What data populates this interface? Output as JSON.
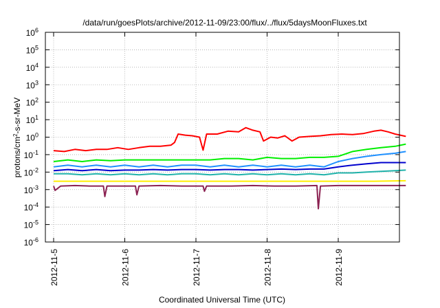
{
  "chart_data": {
    "type": "line",
    "title": "/data/run/goesPlots/archive/2012-11-09/23:00/flux/../flux/5daysMoonFluxes.txt",
    "xlabel": "Coordinated Universal Time (UTC)",
    "ylabel_parts": {
      "pre": "protons/cm",
      "sup": "2",
      "post": "-s-sr-MeV"
    },
    "yscale": "log",
    "ylim_exp": [
      -6,
      6
    ],
    "y_ticks": [
      {
        "exp": -6,
        "label_base": "10",
        "label_exp": "-6"
      },
      {
        "exp": -5,
        "label_base": "10",
        "label_exp": "-5"
      },
      {
        "exp": -4,
        "label_base": "10",
        "label_exp": "-4"
      },
      {
        "exp": -3,
        "label_base": "10",
        "label_exp": "-3"
      },
      {
        "exp": -2,
        "label_base": "10",
        "label_exp": "-2"
      },
      {
        "exp": -1,
        "label_base": "10",
        "label_exp": "-1"
      },
      {
        "exp": 0,
        "label_base": "10",
        "label_exp": "0"
      },
      {
        "exp": 1,
        "label_base": "10",
        "label_exp": "1"
      },
      {
        "exp": 2,
        "label_base": "10",
        "label_exp": "2"
      },
      {
        "exp": 3,
        "label_base": "10",
        "label_exp": "3"
      },
      {
        "exp": 4,
        "label_base": "10",
        "label_exp": "4"
      },
      {
        "exp": 5,
        "label_base": "10",
        "label_exp": "5"
      },
      {
        "exp": 6,
        "label_base": "10",
        "label_exp": "6"
      }
    ],
    "x_ticks": [
      "2012-11-5",
      "2012-11-6",
      "2012-11-7",
      "2012-11-8",
      "2012-11-9"
    ],
    "x_tick_days": [
      0,
      1,
      2,
      3,
      4
    ],
    "xlim_days": [
      0,
      4.95
    ],
    "grid": true,
    "series": [
      {
        "color": "#ff0000",
        "points": [
          [
            0,
            0.17
          ],
          [
            0.15,
            0.15
          ],
          [
            0.3,
            0.2
          ],
          [
            0.45,
            0.17
          ],
          [
            0.6,
            0.2
          ],
          [
            0.75,
            0.2
          ],
          [
            0.9,
            0.25
          ],
          [
            1.05,
            0.2
          ],
          [
            1.2,
            0.25
          ],
          [
            1.35,
            0.3
          ],
          [
            1.5,
            0.3
          ],
          [
            1.65,
            0.35
          ],
          [
            1.7,
            0.5
          ],
          [
            1.75,
            1.5
          ],
          [
            1.85,
            1.3
          ],
          [
            1.95,
            1.2
          ],
          [
            2.05,
            1.0
          ],
          [
            2.1,
            0.18
          ],
          [
            2.15,
            1.5
          ],
          [
            2.3,
            1.5
          ],
          [
            2.45,
            2.2
          ],
          [
            2.6,
            2.0
          ],
          [
            2.7,
            3.5
          ],
          [
            2.8,
            2.5
          ],
          [
            2.9,
            2.0
          ],
          [
            2.95,
            0.6
          ],
          [
            3.05,
            1.0
          ],
          [
            3.15,
            0.9
          ],
          [
            3.25,
            1.2
          ],
          [
            3.35,
            0.6
          ],
          [
            3.45,
            1.0
          ],
          [
            3.6,
            1.1
          ],
          [
            3.75,
            1.2
          ],
          [
            3.9,
            1.4
          ],
          [
            4.05,
            1.5
          ],
          [
            4.2,
            1.4
          ],
          [
            4.35,
            1.6
          ],
          [
            4.5,
            2.2
          ],
          [
            4.6,
            2.5
          ],
          [
            4.7,
            2.0
          ],
          [
            4.8,
            1.5
          ],
          [
            4.95,
            1.1
          ]
        ]
      },
      {
        "color": "#00ee00",
        "points": [
          [
            0,
            0.04
          ],
          [
            0.2,
            0.05
          ],
          [
            0.4,
            0.04
          ],
          [
            0.6,
            0.05
          ],
          [
            0.8,
            0.045
          ],
          [
            1.0,
            0.05
          ],
          [
            1.2,
            0.05
          ],
          [
            1.4,
            0.05
          ],
          [
            1.6,
            0.05
          ],
          [
            1.8,
            0.05
          ],
          [
            2.0,
            0.05
          ],
          [
            2.2,
            0.05
          ],
          [
            2.4,
            0.06
          ],
          [
            2.6,
            0.06
          ],
          [
            2.8,
            0.05
          ],
          [
            3.0,
            0.07
          ],
          [
            3.2,
            0.06
          ],
          [
            3.4,
            0.06
          ],
          [
            3.6,
            0.07
          ],
          [
            3.8,
            0.07
          ],
          [
            4.0,
            0.08
          ],
          [
            4.2,
            0.15
          ],
          [
            4.4,
            0.2
          ],
          [
            4.6,
            0.25
          ],
          [
            4.8,
            0.3
          ],
          [
            4.95,
            0.4
          ]
        ]
      },
      {
        "color": "#1e90ff",
        "points": [
          [
            0,
            0.02
          ],
          [
            0.2,
            0.025
          ],
          [
            0.4,
            0.02
          ],
          [
            0.6,
            0.025
          ],
          [
            0.8,
            0.02
          ],
          [
            1.0,
            0.025
          ],
          [
            1.2,
            0.02
          ],
          [
            1.4,
            0.025
          ],
          [
            1.6,
            0.02
          ],
          [
            1.8,
            0.025
          ],
          [
            2.0,
            0.025
          ],
          [
            2.2,
            0.02
          ],
          [
            2.4,
            0.025
          ],
          [
            2.6,
            0.02
          ],
          [
            2.8,
            0.025
          ],
          [
            3.0,
            0.02
          ],
          [
            3.2,
            0.025
          ],
          [
            3.4,
            0.02
          ],
          [
            3.6,
            0.025
          ],
          [
            3.8,
            0.02
          ],
          [
            4.0,
            0.04
          ],
          [
            4.2,
            0.06
          ],
          [
            4.4,
            0.08
          ],
          [
            4.6,
            0.1
          ],
          [
            4.8,
            0.12
          ],
          [
            4.95,
            0.15
          ]
        ]
      },
      {
        "color": "#0000cd",
        "points": [
          [
            0,
            0.012
          ],
          [
            0.2,
            0.014
          ],
          [
            0.4,
            0.012
          ],
          [
            0.6,
            0.014
          ],
          [
            0.8,
            0.012
          ],
          [
            1.0,
            0.013
          ],
          [
            1.2,
            0.013
          ],
          [
            1.4,
            0.014
          ],
          [
            1.6,
            0.013
          ],
          [
            1.8,
            0.014
          ],
          [
            2.0,
            0.014
          ],
          [
            2.2,
            0.013
          ],
          [
            2.4,
            0.014
          ],
          [
            2.6,
            0.014
          ],
          [
            2.8,
            0.013
          ],
          [
            3.0,
            0.014
          ],
          [
            3.2,
            0.015
          ],
          [
            3.4,
            0.014
          ],
          [
            3.6,
            0.015
          ],
          [
            3.8,
            0.015
          ],
          [
            4.0,
            0.02
          ],
          [
            4.2,
            0.025
          ],
          [
            4.4,
            0.03
          ],
          [
            4.6,
            0.035
          ],
          [
            4.8,
            0.035
          ],
          [
            4.95,
            0.035
          ]
        ]
      },
      {
        "color": "#20b2aa",
        "points": [
          [
            0,
            0.008
          ],
          [
            0.2,
            0.008
          ],
          [
            0.4,
            0.007
          ],
          [
            0.6,
            0.008
          ],
          [
            0.8,
            0.007
          ],
          [
            1.0,
            0.008
          ],
          [
            1.2,
            0.007
          ],
          [
            1.4,
            0.008
          ],
          [
            1.6,
            0.007
          ],
          [
            1.8,
            0.008
          ],
          [
            2.0,
            0.008
          ],
          [
            2.2,
            0.007
          ],
          [
            2.4,
            0.008
          ],
          [
            2.6,
            0.007
          ],
          [
            2.8,
            0.008
          ],
          [
            3.0,
            0.007
          ],
          [
            3.2,
            0.008
          ],
          [
            3.4,
            0.007
          ],
          [
            3.6,
            0.008
          ],
          [
            3.8,
            0.007
          ],
          [
            4.0,
            0.009
          ],
          [
            4.2,
            0.009
          ],
          [
            4.4,
            0.01
          ],
          [
            4.6,
            0.011
          ],
          [
            4.8,
            0.012
          ],
          [
            4.95,
            0.013
          ]
        ]
      },
      {
        "color": "#ffee00",
        "points": [
          [
            0,
            0.003
          ],
          [
            0.5,
            0.003
          ],
          [
            1.0,
            0.003
          ],
          [
            1.5,
            0.003
          ],
          [
            2.0,
            0.003
          ],
          [
            2.5,
            0.003
          ],
          [
            3.0,
            0.003
          ],
          [
            3.5,
            0.003
          ],
          [
            4.0,
            0.003
          ],
          [
            4.5,
            0.003
          ],
          [
            4.95,
            0.0032
          ]
        ]
      },
      {
        "color": "#8b2252",
        "points": [
          [
            0,
            0.0016
          ],
          [
            0.02,
            0.0009
          ],
          [
            0.1,
            0.0016
          ],
          [
            0.3,
            0.0017
          ],
          [
            0.5,
            0.0016
          ],
          [
            0.7,
            0.0016
          ],
          [
            0.72,
            0.0004
          ],
          [
            0.75,
            0.0016
          ],
          [
            1.0,
            0.0016
          ],
          [
            1.15,
            0.0016
          ],
          [
            1.17,
            0.0005
          ],
          [
            1.2,
            0.0016
          ],
          [
            1.5,
            0.0017
          ],
          [
            1.8,
            0.0016
          ],
          [
            2.1,
            0.0016
          ],
          [
            2.12,
            0.0008
          ],
          [
            2.15,
            0.0016
          ],
          [
            2.5,
            0.0016
          ],
          [
            2.8,
            0.0017
          ],
          [
            3.1,
            0.0016
          ],
          [
            3.4,
            0.0016
          ],
          [
            3.7,
            0.0017
          ],
          [
            3.72,
            8e-05
          ],
          [
            3.75,
            0.0016
          ],
          [
            4.0,
            0.0017
          ],
          [
            4.3,
            0.0017
          ],
          [
            4.6,
            0.0017
          ],
          [
            4.95,
            0.0017
          ]
        ]
      }
    ]
  }
}
